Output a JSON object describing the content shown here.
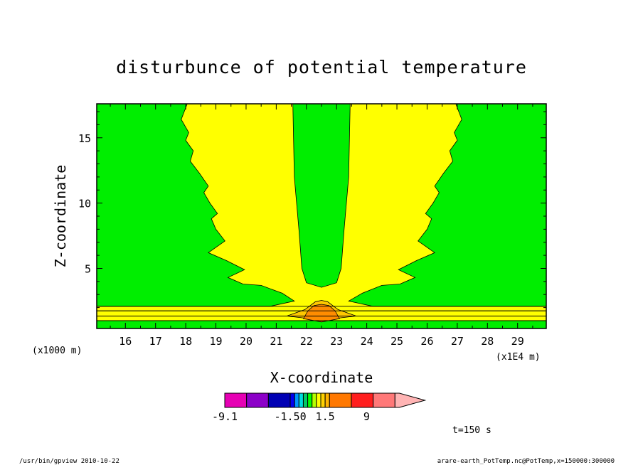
{
  "chart_data": {
    "type": "contour",
    "title": "disturbunce of potential temperature",
    "xlabel": "X-coordinate",
    "ylabel": "Z-coordinate",
    "x_unit_label": "(x1E4 m)",
    "y_unit_label": "(x1000 m)",
    "xlim": [
      15.05,
      29.95
    ],
    "ylim": [
      0.4,
      17.6
    ],
    "x_ticks": [
      "16",
      "17",
      "18",
      "19",
      "20",
      "21",
      "22",
      "23",
      "24",
      "25",
      "26",
      "27",
      "28",
      "29"
    ],
    "x_tick_values": [
      16,
      17,
      18,
      19,
      20,
      21,
      22,
      23,
      24,
      25,
      26,
      27,
      28,
      29
    ],
    "y_ticks": [
      "5",
      "10",
      "15"
    ],
    "y_tick_values": [
      5,
      10,
      15
    ],
    "regions": [
      {
        "level_color": "#ffff00",
        "points": [
          [
            18.05,
            17.6
          ],
          [
            17.85,
            16.4
          ],
          [
            18.1,
            15.4
          ],
          [
            18.0,
            14.8
          ],
          [
            18.25,
            14.0
          ],
          [
            18.15,
            13.2
          ],
          [
            18.45,
            12.3
          ],
          [
            18.75,
            11.3
          ],
          [
            18.6,
            10.8
          ],
          [
            18.8,
            10.0
          ],
          [
            19.05,
            9.2
          ],
          [
            18.85,
            8.8
          ],
          [
            19.0,
            8.0
          ],
          [
            19.3,
            7.1
          ],
          [
            18.75,
            6.2
          ],
          [
            19.35,
            5.6
          ],
          [
            19.95,
            4.9
          ],
          [
            19.4,
            4.3
          ],
          [
            19.9,
            3.8
          ],
          [
            20.5,
            3.7
          ],
          [
            21.2,
            3.1
          ],
          [
            21.6,
            2.5
          ],
          [
            20.8,
            2.1
          ],
          [
            15.05,
            2.1
          ],
          [
            15.05,
            1.0
          ],
          [
            29.95,
            1.0
          ],
          [
            29.95,
            2.1
          ],
          [
            24.2,
            2.1
          ],
          [
            23.4,
            2.5
          ],
          [
            23.85,
            3.1
          ],
          [
            24.5,
            3.7
          ],
          [
            25.1,
            3.8
          ],
          [
            25.6,
            4.3
          ],
          [
            25.05,
            4.9
          ],
          [
            25.65,
            5.6
          ],
          [
            26.25,
            6.2
          ],
          [
            25.7,
            7.1
          ],
          [
            26.0,
            8.0
          ],
          [
            26.15,
            8.8
          ],
          [
            25.95,
            9.2
          ],
          [
            26.2,
            10.0
          ],
          [
            26.4,
            10.8
          ],
          [
            26.25,
            11.3
          ],
          [
            26.55,
            12.3
          ],
          [
            26.85,
            13.2
          ],
          [
            26.75,
            14.0
          ],
          [
            27.0,
            14.8
          ],
          [
            26.9,
            15.4
          ],
          [
            27.15,
            16.4
          ],
          [
            26.95,
            17.6
          ]
        ]
      },
      {
        "level_color": "#00ee00",
        "points": [
          [
            21.55,
            17.6
          ],
          [
            21.6,
            12.0
          ],
          [
            21.75,
            8.0
          ],
          [
            21.85,
            5.0
          ],
          [
            22.0,
            3.9
          ],
          [
            22.5,
            3.55
          ],
          [
            23.0,
            3.9
          ],
          [
            23.15,
            5.0
          ],
          [
            23.25,
            8.0
          ],
          [
            23.4,
            12.0
          ],
          [
            23.45,
            17.6
          ]
        ]
      },
      {
        "level_color": "#ffff00",
        "points": [
          [
            15.05,
            1.75
          ],
          [
            29.95,
            1.75
          ],
          [
            29.95,
            1.35
          ],
          [
            15.05,
            1.35
          ]
        ]
      },
      {
        "level_color": "#ffc800",
        "points": [
          [
            21.35,
            1.35
          ],
          [
            21.95,
            1.85
          ],
          [
            22.3,
            2.45
          ],
          [
            22.5,
            2.55
          ],
          [
            22.7,
            2.45
          ],
          [
            23.05,
            1.85
          ],
          [
            23.65,
            1.35
          ],
          [
            22.5,
            1.05
          ]
        ]
      },
      {
        "level_color": "#ff8c00",
        "points": [
          [
            21.9,
            1.15
          ],
          [
            22.05,
            1.75
          ],
          [
            22.25,
            2.15
          ],
          [
            22.5,
            2.25
          ],
          [
            22.75,
            2.15
          ],
          [
            22.95,
            1.75
          ],
          [
            23.1,
            1.15
          ],
          [
            22.5,
            0.9
          ]
        ]
      }
    ],
    "lines": [
      {
        "points": [
          [
            15.05,
            2.1
          ],
          [
            29.95,
            2.1
          ]
        ]
      },
      {
        "points": [
          [
            15.05,
            1.75
          ],
          [
            29.95,
            1.75
          ]
        ]
      },
      {
        "points": [
          [
            15.05,
            1.35
          ],
          [
            29.95,
            1.35
          ]
        ]
      },
      {
        "points": [
          [
            15.05,
            1.0
          ],
          [
            29.95,
            1.0
          ]
        ]
      }
    ],
    "colorbar": {
      "colors": [
        "#e600b4",
        "#8c00c8",
        "#0000b4",
        "#0000f0",
        "#0096ff",
        "#00dcdc",
        "#00c864",
        "#00ff00",
        "#b4ff00",
        "#ffff00",
        "#ffd200",
        "#ffb400",
        "#ff7800",
        "#ff1e1e",
        "#ff7878",
        "#ffb4b4"
      ],
      "widths": [
        1,
        1,
        1,
        0.2,
        0.2,
        0.2,
        0.2,
        0.2,
        0.2,
        0.2,
        0.2,
        0.2,
        1,
        1,
        1,
        1
      ],
      "labels": [
        "-9.1",
        "-1.50",
        "1.5",
        "9"
      ],
      "label_positions": [
        0,
        3,
        4.6,
        6.5
      ]
    },
    "annotation": "t=150 s"
  },
  "footer": {
    "left": "/usr/bin/gpview   2010-10-22",
    "right": "arare-earth_PotTemp.nc@PotTemp,x=150000:300000"
  },
  "colors": {
    "background": "#00ee00",
    "frame": "#000000"
  }
}
